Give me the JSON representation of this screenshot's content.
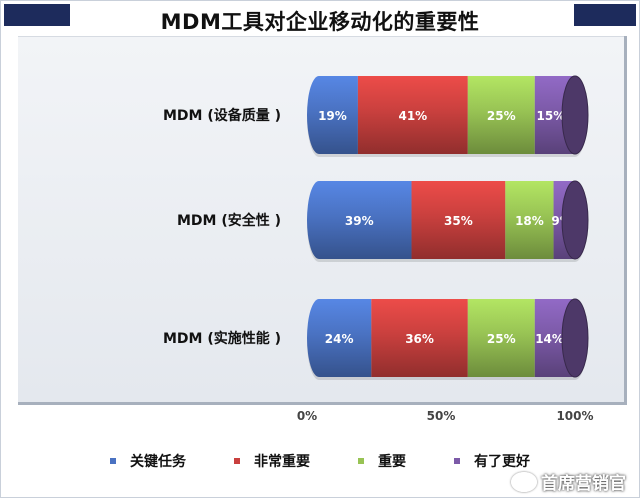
{
  "chart_data": {
    "type": "bar",
    "orientation": "horizontal",
    "stacked": true,
    "title": "MDM工具对企业移动化的重要性",
    "categories": [
      "MDM (设备质量 )",
      "MDM (安全性 )",
      "MDM (实施性能 )"
    ],
    "series": [
      {
        "name": "关键任务",
        "values": [
          19,
          39,
          24
        ],
        "color": "#4a72c2"
      },
      {
        "name": "非常重要",
        "values": [
          41,
          35,
          36
        ],
        "color": "#c9403e"
      },
      {
        "name": "重要",
        "values": [
          25,
          18,
          25
        ],
        "color": "#98c354"
      },
      {
        "name": "有了更好",
        "values": [
          15,
          9,
          14
        ],
        "color": "#7c5aa8"
      }
    ],
    "data_labels": [
      [
        "19%",
        "41%",
        "25%",
        "15%"
      ],
      [
        "39%",
        "35%",
        "18%",
        "9%"
      ],
      [
        "24%",
        "36%",
        "25%",
        "14%"
      ]
    ],
    "x_ticks": [
      "0%",
      "50%",
      "100%"
    ],
    "x_tick_values": [
      0,
      50,
      100
    ],
    "xlim": [
      0,
      100
    ],
    "legend_position": "bottom"
  },
  "watermark": {
    "text": "首席营销官",
    "icon": "chat-bubble-icon"
  }
}
